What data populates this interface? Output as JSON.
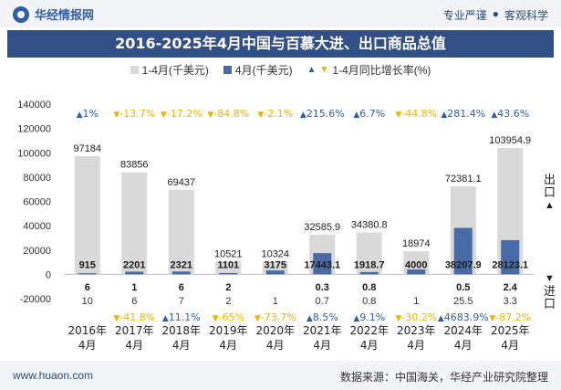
{
  "header": {
    "brand": "华经情报网",
    "tagline_left": "专业严谨",
    "tagline_sep": "●",
    "tagline_right": "客观科学"
  },
  "footer": {
    "website": "www.huaon.com",
    "source": "数据来源：中国海关，华经产业研究院整理"
  },
  "side_labels": {
    "export": "出口",
    "import": "进口",
    "up_arrow": "▲",
    "down_arrow": "▼"
  },
  "colors": {
    "cumulative_bar": "#d9d9d9",
    "monthly_bar": "#4a6aa5",
    "positive": "#2f5fa8",
    "negative": "#f0b400",
    "title_bg": "#324f86"
  },
  "chart_data": {
    "type": "bar",
    "title": "2016-2025年4月中国与百慕大进、出口商品总值",
    "categories": [
      "2016年\n4月",
      "2017年\n4月",
      "2018年\n4月",
      "2019年\n4月",
      "2020年\n4月",
      "2021年\n4月",
      "2022年\n4月",
      "2023年\n4月",
      "2024年\n4月",
      "2025年\n4月"
    ],
    "ylim": [
      -20000,
      140000
    ],
    "yticks": [
      -20000,
      0,
      20000,
      40000,
      60000,
      80000,
      100000,
      120000,
      140000
    ],
    "ytick_labels": [
      "-20000",
      "0",
      "20000",
      "40000",
      "60000",
      "80000",
      "100000",
      "120000",
      "140000"
    ],
    "legend": [
      "1-4月(千美元)",
      "4月(千美元)",
      "1-4月同比增长率(%)"
    ],
    "series": [
      {
        "name": "1-4月(千美元)",
        "values": [
          97184,
          83856,
          69437,
          10521,
          10324,
          32585.9,
          34380.8,
          18974,
          72381.1,
          103954.9
        ],
        "labels": [
          "97184",
          "83856",
          "69437",
          "10521",
          "10324",
          "32585.9",
          "34380.8",
          "18974",
          "72381.1",
          "103954.9"
        ]
      },
      {
        "name": "4月(千美元)",
        "values": [
          915,
          2201,
          2321,
          1101,
          3175,
          17443.1,
          1918.7,
          4000,
          38207.9,
          28123.1
        ],
        "labels": [
          "915",
          "2201",
          "2321",
          "1101",
          "3175",
          "17443.1",
          "1918.7",
          "4000",
          "38207.9",
          "28123.1"
        ]
      }
    ],
    "growth_cumulative": [
      "1%",
      "-13.7%",
      "-17.2%",
      "-84.8%",
      "-2.1%",
      "215.6%",
      "6.7%",
      "-44.8%",
      "281.4%",
      "43.6%"
    ],
    "growth_cumulative_sign": [
      1,
      -1,
      -1,
      -1,
      -1,
      1,
      1,
      -1,
      1,
      1
    ],
    "growth_monthly": [
      "",
      "-41.8%",
      "11.1%",
      "-65%",
      "-73.7%",
      "8.5%",
      "9.1%",
      "-30.2%",
      "4683.9%",
      "-87.2%"
    ],
    "growth_monthly_sign": [
      0,
      -1,
      1,
      -1,
      -1,
      1,
      1,
      -1,
      1,
      -1
    ],
    "export_row": [
      "6",
      "1",
      "6",
      "2",
      "",
      "0.3",
      "0.8",
      "",
      "0.5",
      "2.4"
    ],
    "import_row": [
      "10",
      "6",
      "7",
      "2",
      "1",
      "0.7",
      "0.8",
      "1",
      "25.5",
      "3.3"
    ]
  }
}
